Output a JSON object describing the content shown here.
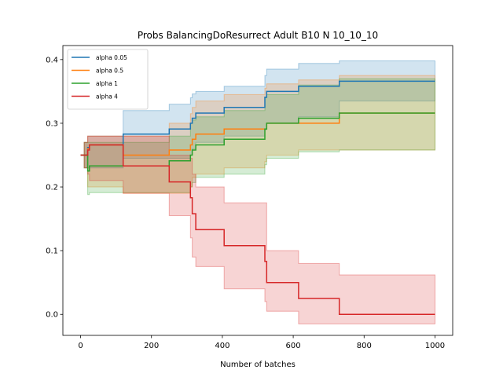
{
  "chart_data": {
    "type": "line",
    "title": "Probs BalancingDoResurrect Adult B10 N 10_10_10",
    "xlabel": "Number of batches",
    "ylabel": "",
    "xlim": [
      -50,
      1050
    ],
    "ylim": [
      -0.033,
      0.422
    ],
    "xticks": [
      0,
      200,
      400,
      600,
      800,
      1000
    ],
    "yticks": [
      0.0,
      0.1,
      0.2,
      0.3,
      0.4
    ],
    "xtick_labels": [
      "0",
      "200",
      "400",
      "600",
      "800",
      "1000"
    ],
    "ytick_labels": [
      "0.0",
      "0.1",
      "0.2",
      "0.3",
      "0.4"
    ],
    "grid": false,
    "legend_position": "top-left",
    "band_opacity": 0.2,
    "series": [
      {
        "name": "alpha 0.05",
        "color": "#1f77b4",
        "x": [
          0,
          10,
          20,
          25,
          120,
          250,
          310,
          315,
          325,
          405,
          520,
          525,
          615,
          730,
          1000
        ],
        "y": [
          0.25,
          0.25,
          0.262,
          0.266,
          0.283,
          0.291,
          0.3,
          0.308,
          0.316,
          0.325,
          0.341,
          0.35,
          0.358,
          0.366,
          0.366
        ],
        "lower": [
          0.25,
          0.23,
          0.23,
          0.23,
          0.245,
          0.245,
          0.25,
          0.26,
          0.27,
          0.28,
          0.29,
          0.3,
          0.31,
          0.335,
          0.335
        ],
        "upper": [
          0.25,
          0.27,
          0.28,
          0.28,
          0.32,
          0.33,
          0.34,
          0.346,
          0.35,
          0.358,
          0.375,
          0.385,
          0.394,
          0.398,
          0.398
        ]
      },
      {
        "name": "alpha 0.5",
        "color": "#ff7f0e",
        "x": [
          0,
          10,
          20,
          25,
          120,
          250,
          310,
          315,
          325,
          405,
          520,
          525,
          615,
          730,
          1000
        ],
        "y": [
          0.25,
          0.25,
          0.26,
          0.266,
          0.25,
          0.258,
          0.266,
          0.275,
          0.283,
          0.291,
          0.291,
          0.3,
          0.3,
          0.316,
          0.316
        ],
        "lower": [
          0.25,
          0.23,
          0.2,
          0.2,
          0.19,
          0.19,
          0.2,
          0.215,
          0.22,
          0.23,
          0.24,
          0.25,
          0.258,
          0.258,
          0.258
        ],
        "upper": [
          0.25,
          0.27,
          0.28,
          0.28,
          0.28,
          0.3,
          0.315,
          0.325,
          0.335,
          0.345,
          0.355,
          0.362,
          0.368,
          0.375,
          0.375
        ]
      },
      {
        "name": "alpha 1",
        "color": "#2ca02c",
        "x": [
          0,
          10,
          20,
          25,
          120,
          250,
          310,
          315,
          325,
          405,
          520,
          525,
          615,
          730,
          1000
        ],
        "y": [
          0.25,
          0.25,
          0.225,
          0.233,
          0.233,
          0.241,
          0.25,
          0.258,
          0.266,
          0.275,
          0.291,
          0.3,
          0.308,
          0.316,
          0.316
        ],
        "lower": [
          0.25,
          0.23,
          0.188,
          0.191,
          0.191,
          0.191,
          0.2,
          0.207,
          0.215,
          0.22,
          0.235,
          0.245,
          0.255,
          0.258,
          0.258
        ],
        "upper": [
          0.25,
          0.27,
          0.27,
          0.27,
          0.27,
          0.28,
          0.3,
          0.305,
          0.31,
          0.32,
          0.34,
          0.345,
          0.36,
          0.37,
          0.37
        ]
      },
      {
        "name": "alpha 4",
        "color": "#d62728",
        "x": [
          0,
          10,
          20,
          25,
          120,
          250,
          310,
          315,
          325,
          405,
          520,
          525,
          615,
          730,
          1000
        ],
        "y": [
          0.25,
          0.25,
          0.258,
          0.266,
          0.233,
          0.208,
          0.183,
          0.158,
          0.133,
          0.108,
          0.083,
          0.05,
          0.025,
          0.0,
          0.0
        ],
        "lower": [
          0.25,
          0.23,
          0.22,
          0.21,
          0.19,
          0.155,
          0.12,
          0.09,
          0.075,
          0.04,
          0.02,
          0.005,
          -0.015,
          -0.015,
          -0.015
        ],
        "upper": [
          0.25,
          0.27,
          0.28,
          0.28,
          0.28,
          0.25,
          0.245,
          0.22,
          0.2,
          0.175,
          0.175,
          0.1,
          0.08,
          0.062,
          0.062
        ]
      }
    ]
  }
}
